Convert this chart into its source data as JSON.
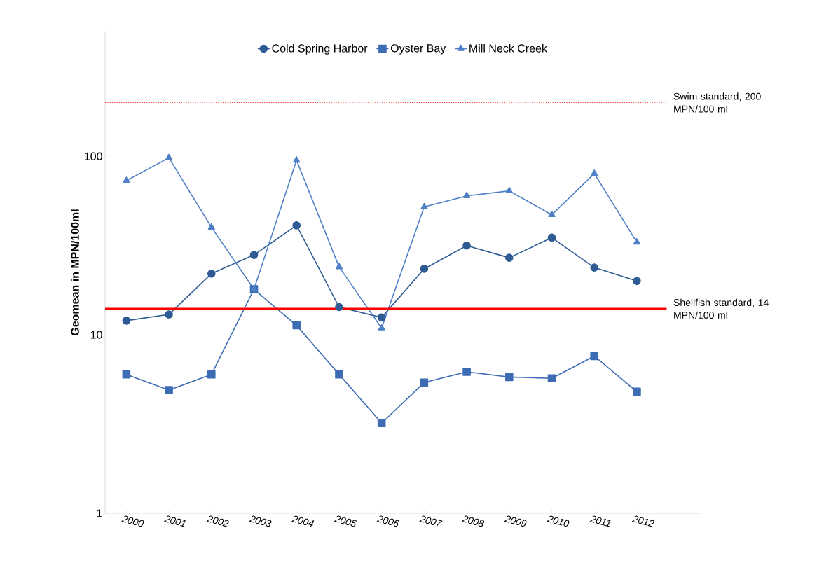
{
  "chart_data": {
    "type": "line",
    "ylabel": "Geomean in MPN/100ml",
    "categories": [
      "2000",
      "2001",
      "2002",
      "2003",
      "2004",
      "2005",
      "2006",
      "2007",
      "2008",
      "2009",
      "2010",
      "2011",
      "2012"
    ],
    "series": [
      {
        "name": "Cold Spring Harbor",
        "color": "#2f5b94",
        "marker": "circle",
        "values": [
          12,
          13,
          22,
          28,
          41,
          14.3,
          12.5,
          23.4,
          31.6,
          27,
          35,
          23.8,
          20
        ]
      },
      {
        "name": "Oyster Bay",
        "color": "#3d6cb5",
        "marker": "square",
        "values": [
          6,
          4.9,
          6,
          18,
          11.3,
          6,
          3.2,
          5.4,
          6.2,
          5.8,
          5.7,
          7.6,
          4.8
        ]
      },
      {
        "name": "Mill Neck Creek",
        "color": "#4f7fc6",
        "marker": "triangle",
        "values": [
          73,
          98,
          40,
          18,
          95,
          24,
          10.9,
          52,
          60,
          64,
          47,
          80,
          33
        ]
      }
    ],
    "log": "y",
    "ylim": [
      1,
      500
    ],
    "yticks": [
      1,
      10,
      100
    ],
    "ref_lines": [
      {
        "axis": "y",
        "value": 200,
        "label": "Swim standard, 200 MPN/100 ml",
        "color": "#ff4040",
        "line_style": "dotted"
      },
      {
        "axis": "y",
        "value": 14,
        "label": "Shellfish standard, 14 MPN/100 ml",
        "color": "#ff0000",
        "line_style": "solid"
      }
    ],
    "grid": false,
    "legend": "top",
    "line_style": "solid"
  }
}
